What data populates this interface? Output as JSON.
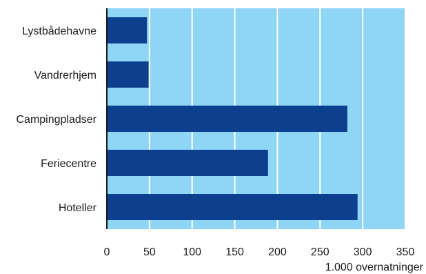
{
  "chart_data": {
    "type": "bar",
    "orientation": "horizontal",
    "categories": [
      "Lystbådehavne",
      "Vandrerhjem",
      "Campingpladser",
      "Feriecentre",
      "Hoteller"
    ],
    "values": [
      47,
      49,
      282,
      189,
      294
    ],
    "xlim": [
      0,
      350
    ],
    "xticks": [
      "0",
      "50",
      "100",
      "150",
      "200",
      "250",
      "300",
      "350"
    ],
    "xlabel": "1.000 overnatninger",
    "grid": true,
    "colors": {
      "bar": "#0c3f8d",
      "plot_background": "#8fd5f5",
      "grid": "#ffffff",
      "axis": "#1a1a1a"
    }
  }
}
